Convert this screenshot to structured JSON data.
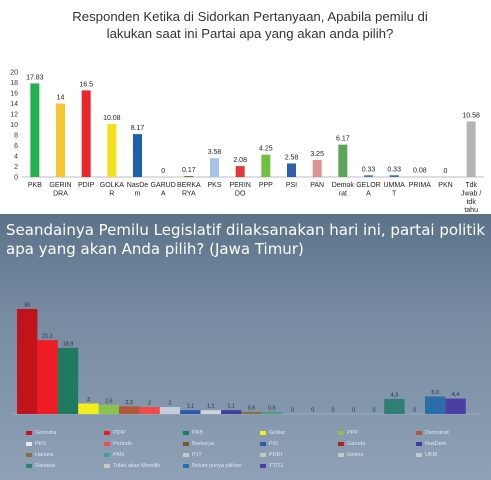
{
  "chart_data": [
    {
      "type": "bar",
      "title": "Responden Ketika di Sidorkan Pertanyaan, Apabila pemilu di lakukan saat ini Partai apa yang akan anda pilih?",
      "title_lines": [
        "Responden Ketika di Sidorkan Pertanyaan, Apabila pemilu di",
        "lakukan saat ini Partai apa yang akan anda pilih?"
      ],
      "categories": [
        [
          "PKB"
        ],
        [
          "GERIN",
          "DRA"
        ],
        [
          "PDIP"
        ],
        [
          "GOLKA",
          "R"
        ],
        [
          "NasDe",
          "m"
        ],
        [
          "GARUD",
          "A"
        ],
        [
          "BERKA",
          "RYA"
        ],
        [
          "PKS"
        ],
        [
          "PERIN",
          "DO"
        ],
        [
          "PPP"
        ],
        [
          "PSI"
        ],
        [
          "PAN"
        ],
        [
          "Demok",
          "rat"
        ],
        [
          "GELOR",
          "A"
        ],
        [
          "UMMA",
          "T"
        ],
        [
          "PRIMA"
        ],
        [
          "PKN"
        ],
        [
          "Tdk",
          "Jwab /",
          "tdk",
          "tahu"
        ]
      ],
      "values": [
        17.83,
        14,
        16.5,
        10.08,
        8.17,
        0,
        0.17,
        3.58,
        2.08,
        4.25,
        2.58,
        3.25,
        6.17,
        0.33,
        0.33,
        0.08,
        0,
        10.58
      ],
      "value_labels": [
        "17.83",
        "14",
        "16.5",
        "10.08",
        "8.17",
        "0",
        "0.17",
        "3.58",
        "2.08",
        "4.25",
        "2.58",
        "3.25",
        "6.17",
        "0.33",
        "0.33",
        "0.08",
        "0",
        "10.58"
      ],
      "colors": [
        "#22b14c",
        "#f7c531",
        "#e8262c",
        "#f2df1f",
        "#1f5eaa",
        "#9aa2b0",
        "#7c5a1e",
        "#a9c3e6",
        "#e03a3a",
        "#6fbf40",
        "#2e5fa8",
        "#d99494",
        "#5aa55a",
        "#3a7fd0",
        "#3b6db5",
        "#b9a3d3",
        "#a0a0a0",
        "#b5b5b5"
      ],
      "ylim": [
        0,
        20
      ],
      "yticks": [
        "0",
        "2",
        "4",
        "6",
        "8",
        "10",
        "12",
        "14",
        "16",
        "18",
        "20"
      ],
      "grid": false,
      "legend": "none"
    },
    {
      "type": "bar",
      "title": "Seandainya Pemilu Legislatif dilaksanakan hari ini, partai politik apa yang akan Anda pilih? (Jawa Timur)",
      "title_text": "Seandainya Pemilu Legislatif dilaksanakan hari ini, partai politik apa yang akan Anda pilih? (Jawa Timur)",
      "values": [
        30,
        21.1,
        18.9,
        3,
        2.6,
        2.2,
        2,
        2,
        1.1,
        1.1,
        1.1,
        0.6,
        0.6,
        0,
        0,
        0,
        0,
        0,
        4.3,
        0,
        5.0,
        4.4
      ],
      "value_labels": [
        "30",
        "21,1",
        "18,9",
        "3",
        "2,6",
        "2,2",
        "2",
        "2",
        "1,1",
        "1,1",
        "1,1",
        "0,6",
        "0,6",
        "0",
        "0",
        "0",
        "0",
        "0",
        "4,3",
        "0",
        "5,0",
        "4,4"
      ],
      "colors": [
        "#c0141a",
        "#ee1c24",
        "#1f7a60",
        "#f4ee1c",
        "#8bc34a",
        "#b05a3b",
        "#f04a4a",
        "#c3ccd8",
        "#2a5aa8",
        "#d0d4da",
        "#3f3fa0",
        "#8a7040",
        "#4aa080",
        "#c8c8c8",
        "#c8c8c8",
        "#c8c8c8",
        "#c8c8c8",
        "#c8c8c8",
        "#2f7f74",
        "#c8c8c8",
        "#2a6fa5",
        "#4b3fa6"
      ],
      "ylim": [
        0,
        32
      ],
      "grid": false,
      "legend": "bottom",
      "legend_items": [
        {
          "label": "Gerindra",
          "color": "#c0141a"
        },
        {
          "label": "PDIP",
          "color": "#ee1c24"
        },
        {
          "label": "PKB",
          "color": "#1f7a60"
        },
        {
          "label": "Golkar",
          "color": "#f4ee1c"
        },
        {
          "label": "PPP",
          "color": "#8bc34a"
        },
        {
          "label": "Demokrat",
          "color": "#b05a3b"
        },
        {
          "label": "PKS",
          "color": "#e8e8e8"
        },
        {
          "label": "Perindo",
          "color": "#f04a4a"
        },
        {
          "label": "Berkarya",
          "color": "#7a5530"
        },
        {
          "label": "PSI",
          "color": "#2a5aa8"
        },
        {
          "label": "Garuda",
          "color": "#b02020"
        },
        {
          "label": "NasDem",
          "color": "#3f3fa0"
        },
        {
          "label": "Hanura",
          "color": "#8a7040"
        },
        {
          "label": "PAN",
          "color": "#4aa080"
        },
        {
          "label": "PJT",
          "color": "#c8c8c8"
        },
        {
          "label": "PDRI",
          "color": "#c8c8c8"
        },
        {
          "label": "Gelora",
          "color": "#c8c8c8"
        },
        {
          "label": "UKM",
          "color": "#c8c8c8"
        },
        {
          "label": "Rahasia",
          "color": "#2f7f74"
        },
        {
          "label": "Tidak akan Memilih",
          "color": "#c8c8c8"
        },
        {
          "label": "Belum punya pilihan",
          "color": "#2a6fa5"
        },
        {
          "label": "TT/TJ",
          "color": "#4b3fa6"
        }
      ]
    }
  ]
}
